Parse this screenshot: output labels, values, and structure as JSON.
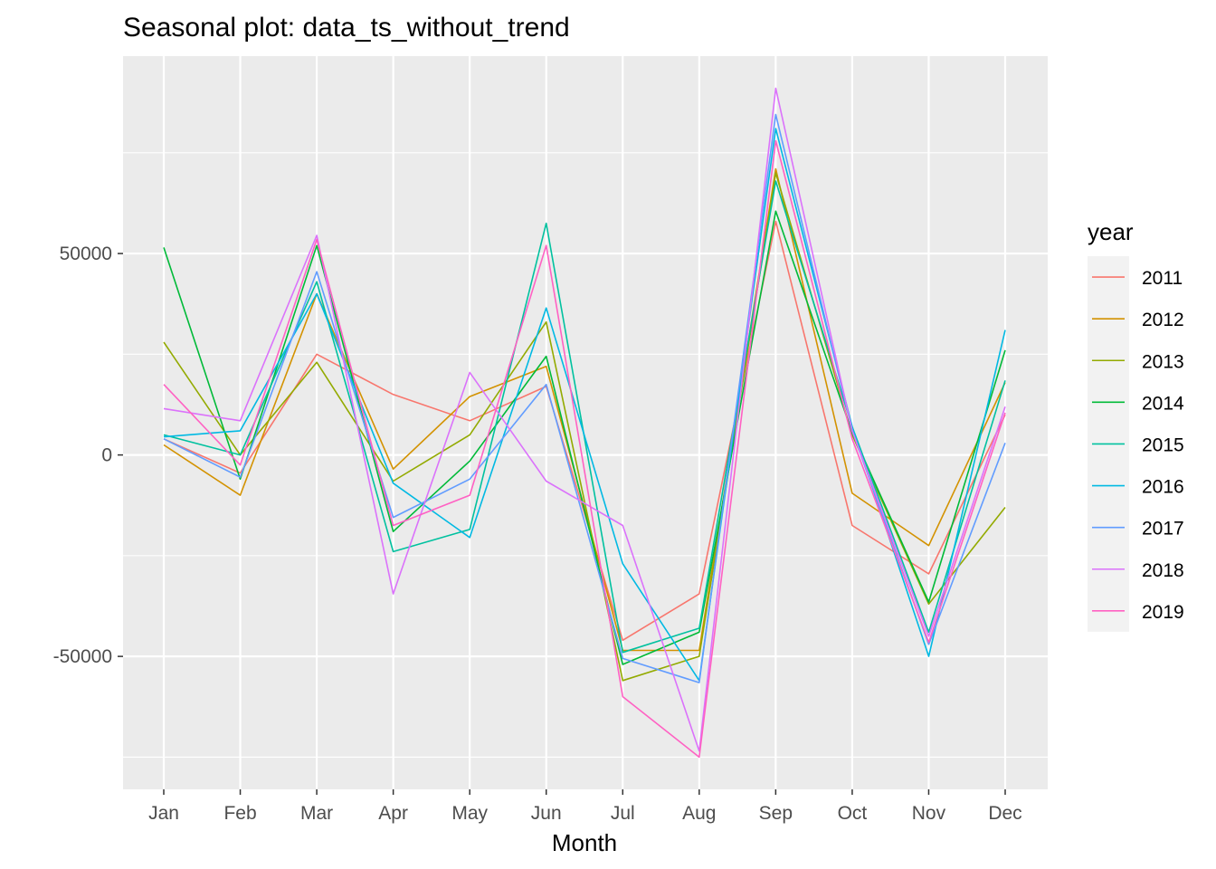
{
  "chart_data": {
    "type": "line",
    "title": "Seasonal plot: data_ts_without_trend",
    "xlabel": "Month",
    "ylabel": "",
    "categories": [
      "Jan",
      "Feb",
      "Mar",
      "Apr",
      "May",
      "Jun",
      "Jul",
      "Aug",
      "Sep",
      "Oct",
      "Nov",
      "Dec"
    ],
    "ylim": [
      -83000,
      99000
    ],
    "yticks": [
      -50000,
      0,
      50000
    ],
    "ytick_labels": [
      "-50000",
      "0",
      "50000"
    ],
    "grid": true,
    "legend_title": "year",
    "legend_position": "right",
    "series": [
      {
        "name": "2011",
        "color": "#F8766D",
        "values": [
          4000,
          -4500,
          25000,
          15000,
          8500,
          17000,
          -46000,
          -34500,
          58000,
          -17500,
          -29500,
          10000
        ]
      },
      {
        "name": "2012",
        "color": "#D39200",
        "values": [
          2500,
          -10000,
          40000,
          -3500,
          14500,
          22000,
          -48500,
          -48500,
          71000,
          -9500,
          -22500,
          18000
        ]
      },
      {
        "name": "2013",
        "color": "#93AA00",
        "values": [
          28000,
          0,
          23000,
          -6500,
          5000,
          33000,
          -56000,
          -50000,
          70000,
          5000,
          -37000,
          -13000
        ]
      },
      {
        "name": "2014",
        "color": "#00BA38",
        "values": [
          51500,
          -6000,
          52000,
          -19000,
          -1500,
          24500,
          -52000,
          -44000,
          60500,
          5500,
          -36500,
          26000
        ]
      },
      {
        "name": "2015",
        "color": "#00C19F",
        "values": [
          5000,
          0,
          43000,
          -24000,
          -18500,
          57500,
          -49000,
          -43000,
          68000,
          7000,
          -44000,
          18500
        ]
      },
      {
        "name": "2016",
        "color": "#00B9E3",
        "values": [
          4500,
          6000,
          40000,
          -7000,
          -20500,
          36500,
          -27000,
          -56000,
          81000,
          7000,
          -50000,
          31000
        ]
      },
      {
        "name": "2017",
        "color": "#619CFF",
        "values": [
          4000,
          -5500,
          45500,
          -15500,
          -6000,
          17500,
          -50500,
          -56500,
          84500,
          6000,
          -47000,
          3000
        ]
      },
      {
        "name": "2018",
        "color": "#DB72FB",
        "values": [
          11500,
          8500,
          54500,
          -34500,
          20500,
          -6500,
          -17500,
          -73500,
          91000,
          6000,
          -45000,
          12000
        ]
      },
      {
        "name": "2019",
        "color": "#FF61C3",
        "values": [
          17500,
          -2500,
          53500,
          -17500,
          -10000,
          52000,
          -60000,
          -75000,
          78000,
          4000,
          -46500,
          10500
        ]
      }
    ]
  }
}
